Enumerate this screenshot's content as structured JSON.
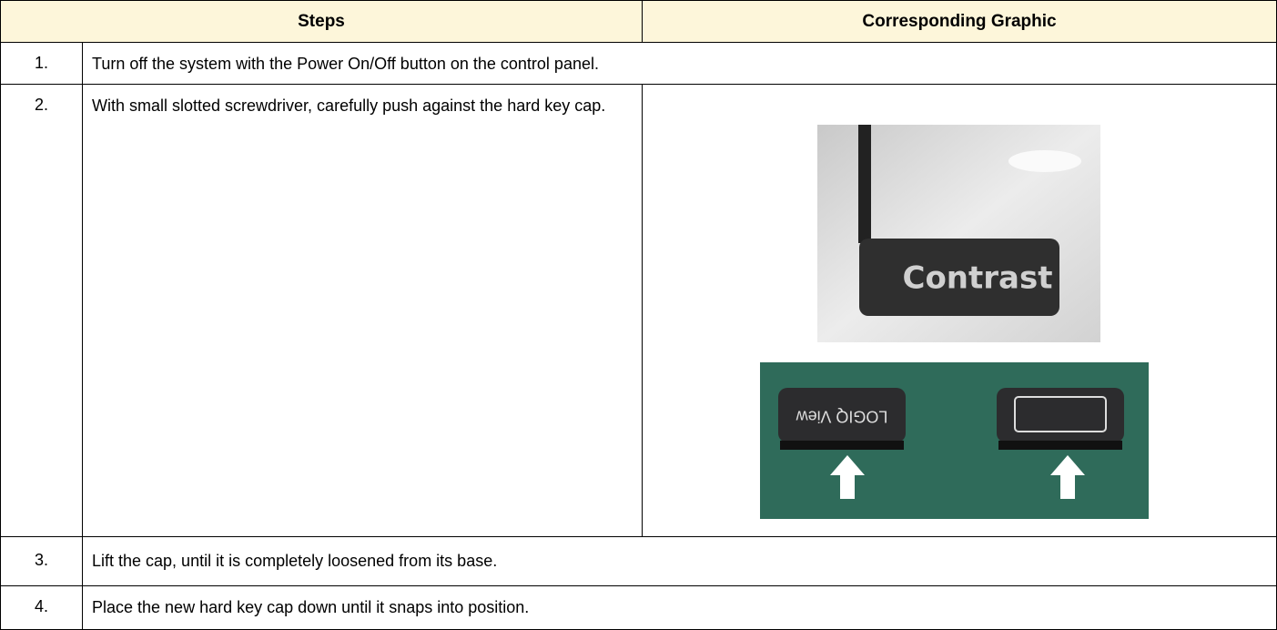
{
  "table": {
    "header": [
      "Steps",
      "Corresponding Graphic"
    ],
    "rows": [
      [
        "1.",
        "Turn off the system with the Power On/Off button on the control panel."
      ],
      [
        "2.",
        "With small slotted screwdriver, carefully push against the hard key cap."
      ],
      [
        "3.",
        "Lift the cap, until it is completely loosened from its base."
      ],
      [
        "4.",
        "Place the new hard key cap down until it snaps into position."
      ]
    ]
  },
  "graphics": {
    "photo_1_key_label": "Contrast",
    "photo_2_key_label": "LOGIQ View"
  }
}
